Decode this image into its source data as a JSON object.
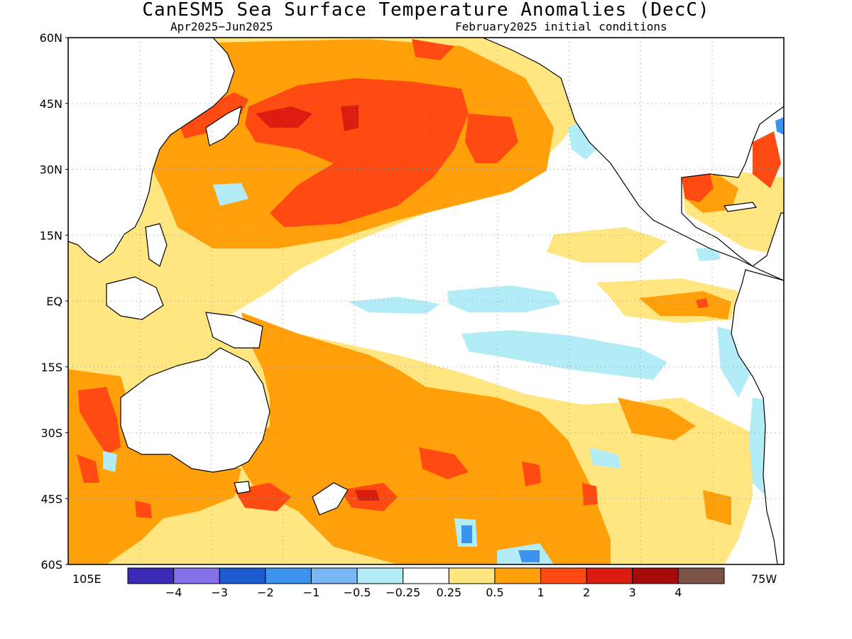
{
  "title": "CanESM5 Sea Surface Temperature Anomalies (DecC)",
  "subtitle_left": "Apr2025−Jun2025",
  "subtitle_right": "February2025 initial conditions",
  "lat_axis": [
    "60N",
    "45N",
    "30N",
    "15N",
    "EQ",
    "15S",
    "30S",
    "45S",
    "60S"
  ],
  "lon_left_label": "105E",
  "lon_right_label": "75W",
  "colorbar": {
    "colors": [
      "#3a2ab5",
      "#8470ea",
      "#1c5bd0",
      "#3c93ee",
      "#7ab7f5",
      "#b2ecf7",
      "#ffffff",
      "#ffe680",
      "#ffa00a",
      "#ff4a12",
      "#dd1c10",
      "#a60a0a",
      "#7a5246"
    ],
    "labels": [
      "−4",
      "−3",
      "−2",
      "−1",
      "−0.5",
      "−0.25",
      "0.25",
      "0.5",
      "1",
      "2",
      "3",
      "4"
    ]
  },
  "map_colors": {
    "land_outline": "#000000",
    "ocean_neutral": "#ffffff",
    "gridline": "#9a9a9a"
  }
}
